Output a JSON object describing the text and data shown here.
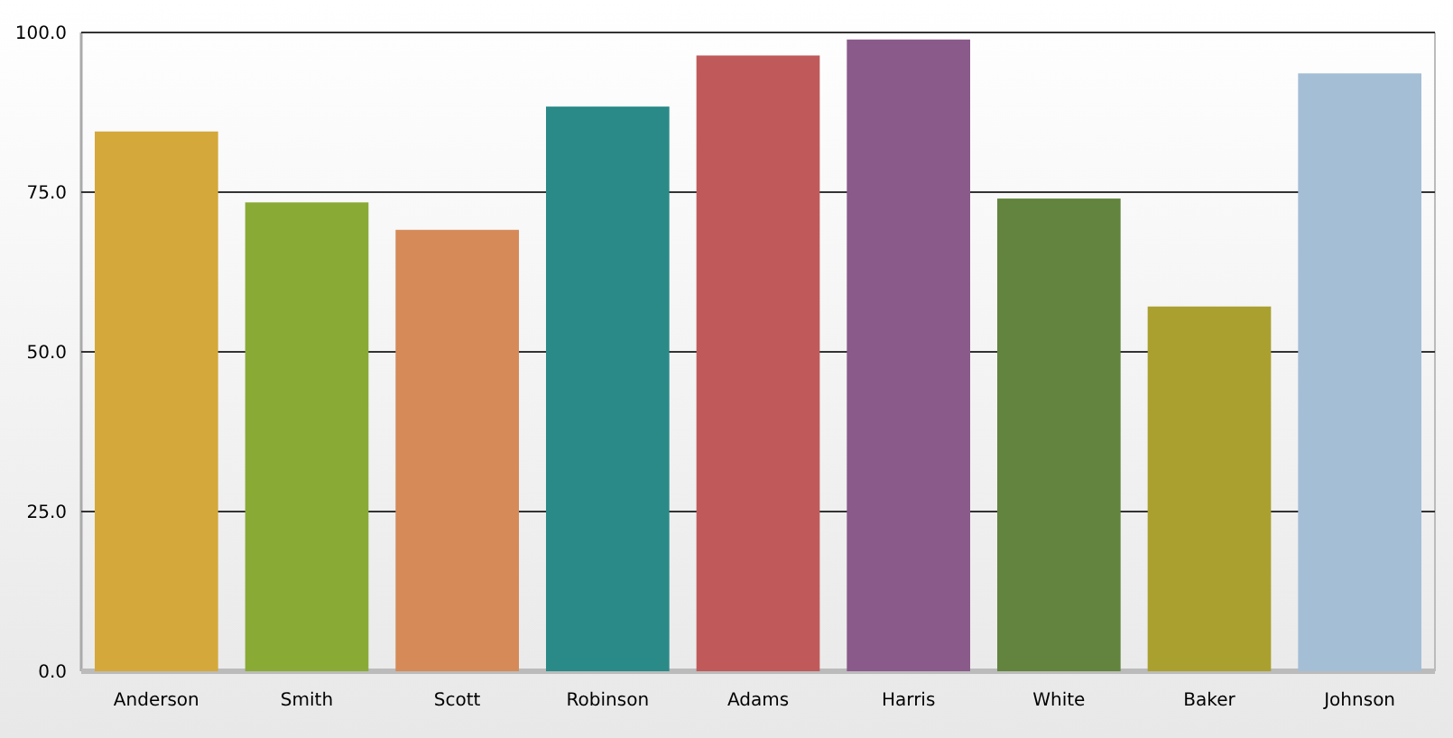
{
  "chart_data": {
    "type": "bar",
    "categories": [
      "Anderson",
      "Smith",
      "Scott",
      "Robinson",
      "Adams",
      "Harris",
      "White",
      "Baker",
      "Johnson"
    ],
    "values": [
      84.5,
      73.4,
      69.1,
      88.4,
      96.4,
      98.9,
      74.0,
      57.1,
      93.6
    ],
    "colors": [
      "#d4a83a",
      "#8aaa36",
      "#d58a58",
      "#2a8a88",
      "#c05a5a",
      "#8a5a8a",
      "#62843e",
      "#aaa030",
      "#a4bed6"
    ],
    "ylim": [
      0,
      100
    ],
    "yticks": [
      {
        "value": 0,
        "label": "0.0"
      },
      {
        "value": 25,
        "label": "25.0"
      },
      {
        "value": 50,
        "label": "50.0"
      },
      {
        "value": 75,
        "label": "75.0"
      },
      {
        "value": 100,
        "label": "100.0"
      }
    ],
    "grid": "y"
  }
}
